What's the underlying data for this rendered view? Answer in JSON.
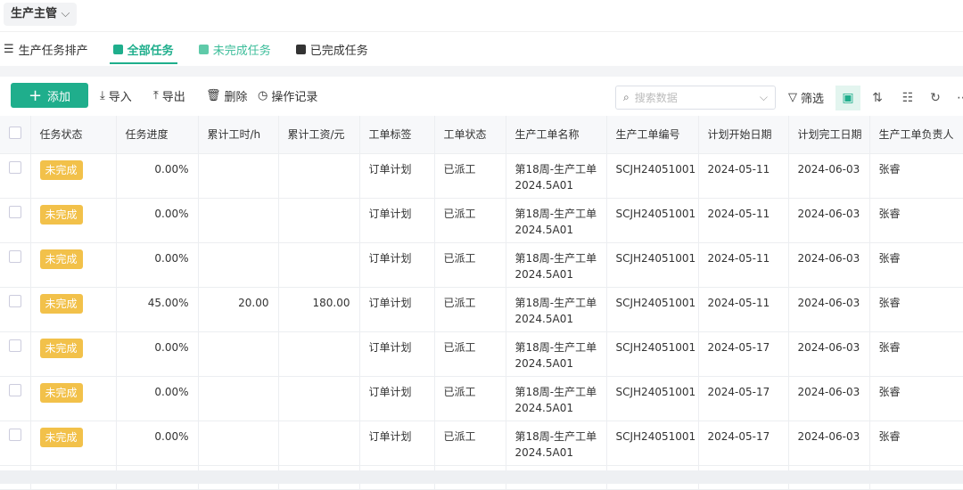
{
  "header": {
    "role": "生产主管"
  },
  "tabs": [
    {
      "label": "生产任务排产"
    },
    {
      "label": "全部任务"
    },
    {
      "label": "未完成任务"
    },
    {
      "label": "已完成任务"
    }
  ],
  "toolbar": {
    "add": "添加",
    "import": "导入",
    "export": "导出",
    "delete": "删除",
    "log": "操作记录",
    "search_placeholder": "搜索数据",
    "filter": "筛选"
  },
  "colors": {
    "accent": "#1fae8c",
    "badge": "#f2c14a"
  },
  "table": {
    "columns": [
      "任务状态",
      "任务进度",
      "累计工时/h",
      "累计工资/元",
      "工单标签",
      "工单状态",
      "生产工单名称",
      "生产工单编号",
      "计划开始日期",
      "计划完工日期",
      "生产工单负责人"
    ],
    "rows": [
      [
        "未完成",
        "0.00%",
        "",
        "",
        "订单计划",
        "已派工",
        "第18周-生产工单2024.5A01",
        "SCJH24051001",
        "2024-05-11",
        "2024-06-03",
        "张睿"
      ],
      [
        "未完成",
        "0.00%",
        "",
        "",
        "订单计划",
        "已派工",
        "第18周-生产工单2024.5A01",
        "SCJH24051001",
        "2024-05-11",
        "2024-06-03",
        "张睿"
      ],
      [
        "未完成",
        "0.00%",
        "",
        "",
        "订单计划",
        "已派工",
        "第18周-生产工单2024.5A01",
        "SCJH24051001",
        "2024-05-11",
        "2024-06-03",
        "张睿"
      ],
      [
        "未完成",
        "45.00%",
        "20.00",
        "180.00",
        "订单计划",
        "已派工",
        "第18周-生产工单2024.5A01",
        "SCJH24051001",
        "2024-05-11",
        "2024-06-03",
        "张睿"
      ],
      [
        "未完成",
        "0.00%",
        "",
        "",
        "订单计划",
        "已派工",
        "第18周-生产工单2024.5A01",
        "SCJH24051001",
        "2024-05-17",
        "2024-06-03",
        "张睿"
      ],
      [
        "未完成",
        "0.00%",
        "",
        "",
        "订单计划",
        "已派工",
        "第18周-生产工单2024.5A01",
        "SCJH24051001",
        "2024-05-17",
        "2024-06-03",
        "张睿"
      ],
      [
        "未完成",
        "0.00%",
        "",
        "",
        "订单计划",
        "已派工",
        "第18周-生产工单2024.5A01",
        "SCJH24051001",
        "2024-05-17",
        "2024-06-03",
        "张睿"
      ]
    ]
  }
}
